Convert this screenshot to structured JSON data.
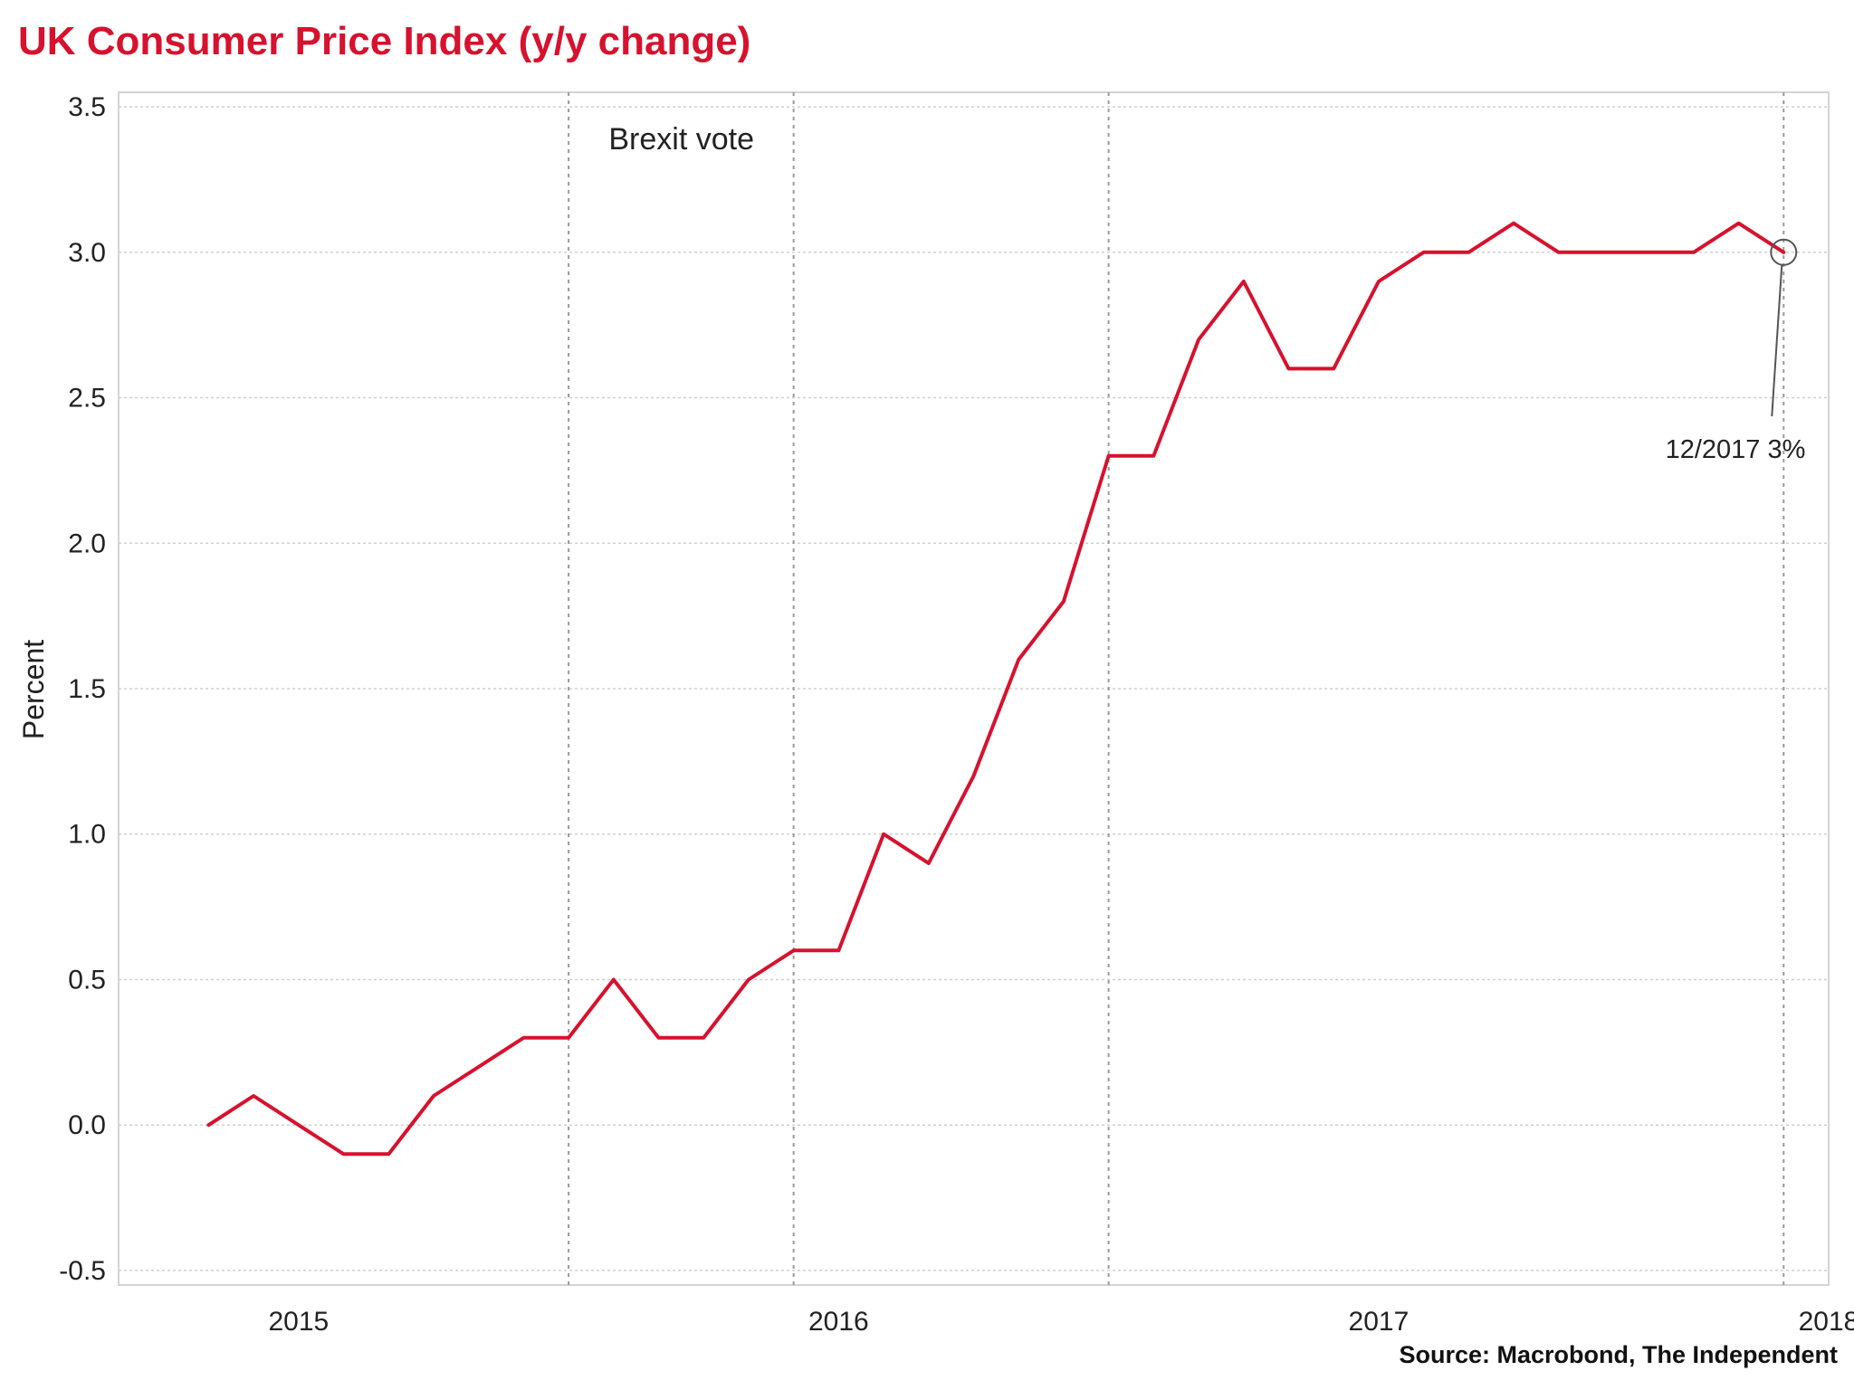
{
  "chart_data": {
    "type": "line",
    "title": "UK Consumer Price Index (y/y change)",
    "ylabel": "Percent",
    "xlabel": "",
    "ylim": [
      -0.55,
      3.55
    ],
    "xlim": [
      "2014-11",
      "2018-01"
    ],
    "grid": true,
    "yticks": [
      -0.5,
      0.0,
      0.5,
      1.0,
      1.5,
      2.0,
      2.5,
      3.0,
      3.5
    ],
    "ytick_labels": [
      "-0.5",
      "0.0",
      "0.5",
      "1.0",
      "1.5",
      "2.0",
      "2.5",
      "3.0",
      "3.5"
    ],
    "xticks": [
      {
        "date": "2015-03",
        "label": "2015"
      },
      {
        "date": "2016-03",
        "label": "2016"
      },
      {
        "date": "2017-03",
        "label": "2017"
      },
      {
        "date": "2018-01",
        "label": "2018"
      }
    ],
    "vlines": [
      "2015-09",
      "2016-02",
      "2016-09",
      "2017-12"
    ],
    "series": [
      {
        "color": "#d6122e",
        "x": [
          "2015-01",
          "2015-02",
          "2015-03",
          "2015-04",
          "2015-05",
          "2015-06",
          "2015-07",
          "2015-08",
          "2015-09",
          "2015-10",
          "2015-11",
          "2015-12",
          "2016-01",
          "2016-02",
          "2016-03",
          "2016-04",
          "2016-05",
          "2016-06",
          "2016-07",
          "2016-08",
          "2016-09",
          "2016-10",
          "2016-11",
          "2016-12",
          "2017-01",
          "2017-02",
          "2017-03",
          "2017-04",
          "2017-05",
          "2017-06",
          "2017-07",
          "2017-08",
          "2017-09",
          "2017-10",
          "2017-11",
          "2017-12"
        ],
        "y": [
          0.0,
          0.1,
          0.0,
          -0.1,
          -0.1,
          0.1,
          0.2,
          0.3,
          0.3,
          0.5,
          0.3,
          0.3,
          0.5,
          0.6,
          0.6,
          1.0,
          0.9,
          1.2,
          1.6,
          1.8,
          2.3,
          2.3,
          2.7,
          2.9,
          2.6,
          2.6,
          2.9,
          3.0,
          3.0,
          3.1,
          3.0,
          3.0,
          3.0,
          3.0,
          3.1,
          3.0
        ]
      }
    ],
    "annotations": [
      {
        "text": "Brexit vote"
      },
      {
        "text": "12/2017 3%",
        "date": "2017-12",
        "value": 3.0
      }
    ],
    "source": "Source: Macrobond, The Independent"
  }
}
